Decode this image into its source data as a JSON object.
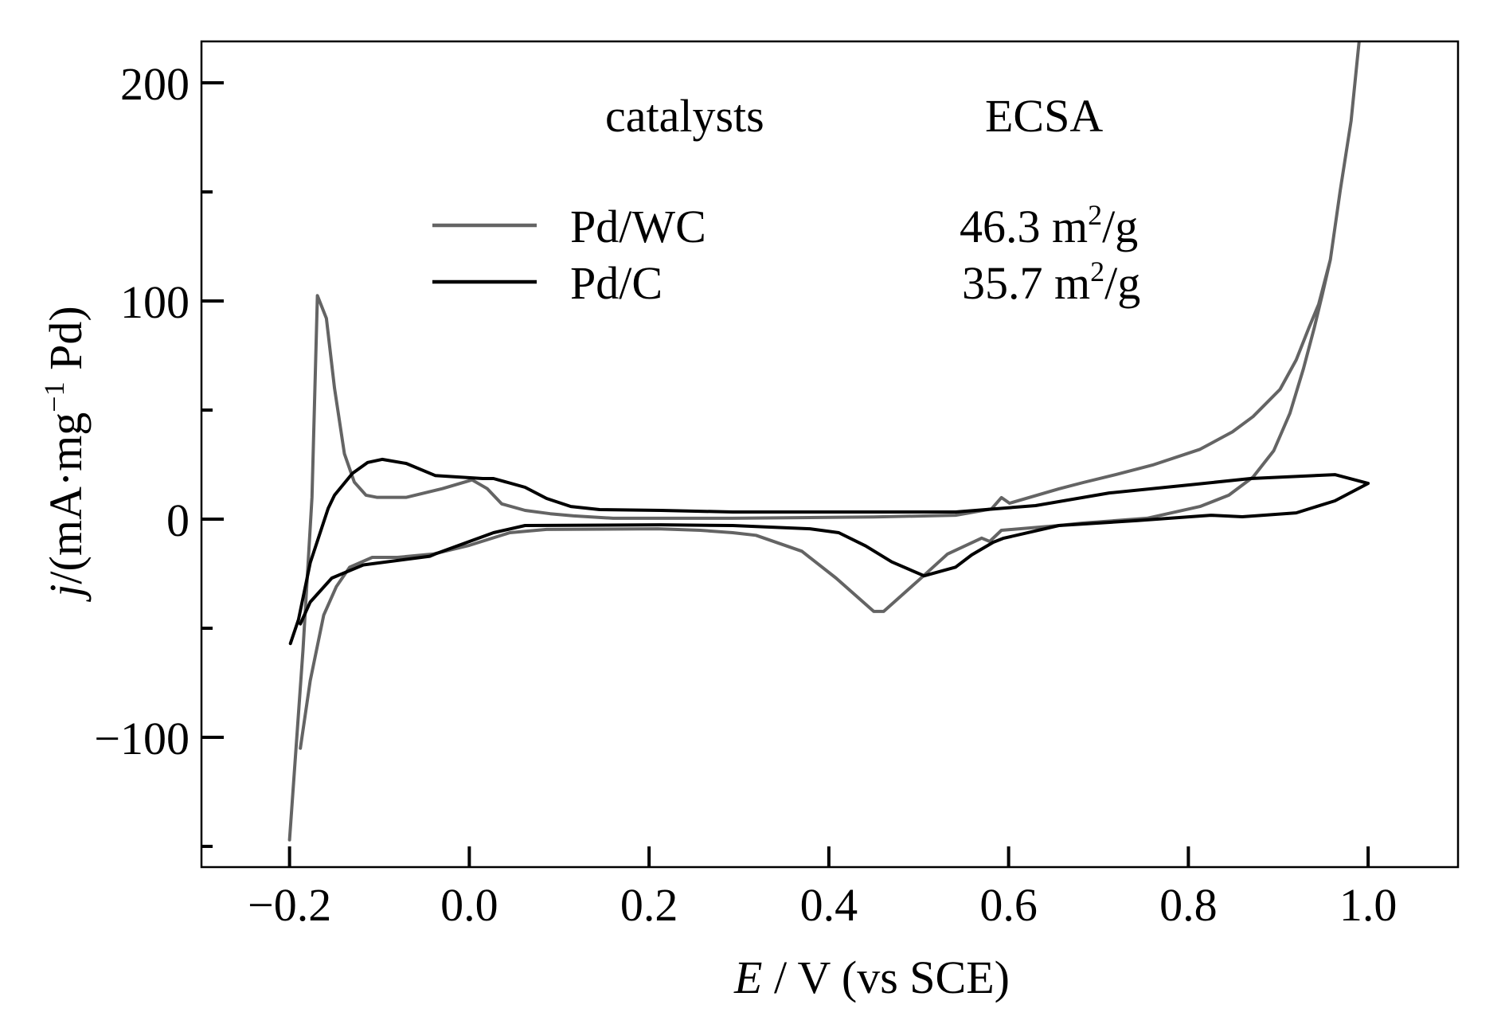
{
  "chart_data": {
    "type": "line",
    "title": "",
    "xlabel": "E / V (vs SCE)",
    "xlabel_parts": {
      "italic": "E",
      "rest": " / V (vs SCE)"
    },
    "ylabel": "j/(mA·mg−1 Pd)",
    "ylabel_parts": {
      "italic": "j",
      "pre": "/(mA·mg",
      "sup": "−1",
      "post": " Pd)"
    },
    "xlim": [
      -0.298,
      1.1
    ],
    "ylim": [
      -159.5,
      219
    ],
    "grid": false,
    "x_ticks": [
      {
        "value": -0.2,
        "label": "−0.2"
      },
      {
        "value": 0.0,
        "label": "0.0"
      },
      {
        "value": 0.2,
        "label": "0.2"
      },
      {
        "value": 0.4,
        "label": "0.4"
      },
      {
        "value": 0.6,
        "label": "0.6"
      },
      {
        "value": 0.8,
        "label": "0.8"
      },
      {
        "value": 1.0,
        "label": "1.0"
      }
    ],
    "y_ticks": [
      {
        "value": 200,
        "label": "200"
      },
      {
        "value": 100,
        "label": "100"
      },
      {
        "value": 0,
        "label": "0"
      },
      {
        "value": -100,
        "label": "−100"
      }
    ],
    "y_minor_ticks": [
      150,
      50,
      -50,
      -150
    ],
    "legend": {
      "placement": "top-center",
      "header_catalysts": "catalysts",
      "header_ecsa": "ECSA",
      "entries": [
        {
          "name": "Pd/WC",
          "ecsa_value": "46.3 m",
          "ecsa_sup": "2",
          "ecsa_unit": "/g",
          "color": "#646464"
        },
        {
          "name": "Pd/C",
          "ecsa_value": "35.7 m",
          "ecsa_sup": "2",
          "ecsa_unit": "/g",
          "color": "#000000"
        }
      ]
    },
    "series": [
      {
        "name": "Pd/WC",
        "ecsa": "46.3 m2/g",
        "color": "#646464",
        "x": [
          -0.2,
          -0.185,
          -0.175,
          -0.169,
          -0.159,
          -0.15,
          -0.139,
          -0.128,
          -0.115,
          -0.103,
          -0.07,
          -0.03,
          0.003,
          0.02,
          0.036,
          0.062,
          0.09,
          0.116,
          0.16,
          0.293,
          0.45,
          0.541,
          0.581,
          0.592,
          0.601,
          0.656,
          0.683,
          0.72,
          0.76,
          0.813,
          0.849,
          0.872,
          0.902,
          0.92,
          0.934,
          0.945,
          0.958,
          0.969,
          0.981,
          0.99,
          0.981,
          0.969,
          0.958,
          0.949,
          0.94,
          0.928,
          0.913,
          0.895,
          0.872,
          0.845,
          0.813,
          0.754,
          0.683,
          0.656,
          0.592,
          0.579,
          0.57,
          0.532,
          0.5,
          0.461,
          0.45,
          0.408,
          0.37,
          0.319,
          0.293,
          0.257,
          0.21,
          0.086,
          0.045,
          0.0,
          -0.04,
          -0.08,
          -0.108,
          -0.133,
          -0.148,
          -0.162,
          -0.177,
          -0.188
        ],
        "y": [
          -147,
          -60,
          10,
          102.5,
          92,
          60,
          30,
          17,
          11,
          10,
          10,
          14,
          18,
          14,
          7,
          4,
          2.5,
          1.5,
          0.4,
          0.4,
          1,
          1.8,
          4.7,
          9.9,
          7.3,
          13.9,
          16.8,
          20.5,
          24.8,
          32,
          40,
          47,
          59.5,
          73,
          87.6,
          98.5,
          119,
          150.7,
          182.5,
          219,
          182.5,
          150.7,
          119,
          103,
          87.6,
          69,
          48.5,
          31.4,
          19.3,
          11,
          5.8,
          0.4,
          -1.8,
          -2.9,
          -5.1,
          -10.2,
          -8.7,
          -16,
          -28,
          -42.3,
          -42.3,
          -27,
          -14.7,
          -7.4,
          -6.2,
          -5.1,
          -4.4,
          -4.7,
          -6.2,
          -12,
          -16,
          -17.5,
          -17.5,
          -22,
          -31,
          -44,
          -74,
          -105
        ]
      },
      {
        "name": "Pd/C",
        "ecsa": "35.7 m2/g",
        "color": "#000000",
        "x": [
          -0.199,
          -0.19,
          -0.177,
          -0.157,
          -0.15,
          -0.13,
          -0.113,
          -0.097,
          -0.07,
          -0.038,
          0.015,
          0.027,
          0.062,
          0.086,
          0.113,
          0.145,
          0.213,
          0.293,
          0.541,
          0.63,
          0.712,
          0.801,
          0.869,
          0.963,
          1.0,
          0.963,
          0.92,
          0.86,
          0.825,
          0.742,
          0.656,
          0.594,
          0.583,
          0.559,
          0.541,
          0.506,
          0.47,
          0.441,
          0.411,
          0.379,
          0.293,
          0.213,
          0.062,
          0.027,
          -0.038,
          -0.044,
          -0.118,
          -0.153,
          -0.177,
          -0.188
        ],
        "y": [
          -57,
          -46,
          -20,
          5,
          11,
          21,
          26,
          27.4,
          25.5,
          20,
          18.6,
          18.6,
          14.6,
          9.5,
          5.8,
          4.4,
          4,
          3.3,
          3.3,
          6.2,
          12,
          15.7,
          18.6,
          20.4,
          16.4,
          8.4,
          2.9,
          1.1,
          1.8,
          -0.7,
          -2.9,
          -8.8,
          -10.6,
          -16.4,
          -22,
          -26,
          -19.6,
          -12.3,
          -6.2,
          -4.4,
          -2.9,
          -2.6,
          -2.9,
          -6.2,
          -16,
          -17,
          -21,
          -27,
          -38,
          -48
        ]
      }
    ]
  }
}
